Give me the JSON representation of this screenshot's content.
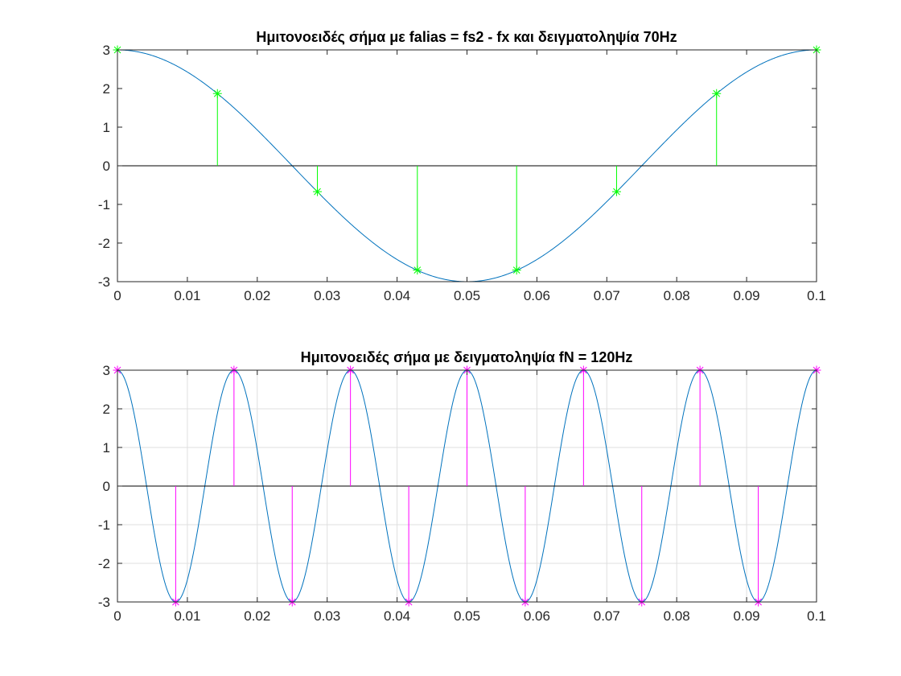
{
  "chart_data": [
    {
      "type": "line",
      "title": "Ημιτονοειδές σήμα με falias = fs2 - fx και δειγματοληψία 70Hz",
      "xlabel": "",
      "ylabel": "",
      "xlim": [
        0,
        0.1
      ],
      "ylim": [
        -3,
        3
      ],
      "grid": false,
      "signal": {
        "amplitude": 3,
        "frequency_hz": 10,
        "function": "cosine"
      },
      "x_ticks": [
        "0",
        "0.01",
        "0.02",
        "0.03",
        "0.04",
        "0.05",
        "0.06",
        "0.07",
        "0.08",
        "0.09",
        "0.1"
      ],
      "y_ticks": [
        "3",
        "2",
        "1",
        "0",
        "-1",
        "-2",
        "-3"
      ],
      "series": [
        {
          "type": "stem",
          "marker": "asterisk",
          "x": [
            0,
            0.0143,
            0.0286,
            0.0429,
            0.0571,
            0.0714,
            0.0857,
            0.1
          ],
          "y": [
            3,
            1.87,
            -0.67,
            -2.7,
            -2.7,
            -0.67,
            1.87,
            3
          ]
        }
      ],
      "colors": {
        "curve": "#0072BD",
        "stem": "#00FF00"
      }
    },
    {
      "type": "line",
      "title": "Ημιτονοειδές σήμα με δειγματοληψία fN = 120Hz",
      "xlabel": "",
      "ylabel": "",
      "xlim": [
        0,
        0.1
      ],
      "ylim": [
        -3,
        3
      ],
      "grid": true,
      "signal": {
        "amplitude": 3,
        "frequency_hz": 60,
        "function": "cosine"
      },
      "x_ticks": [
        "0",
        "0.01",
        "0.02",
        "0.03",
        "0.04",
        "0.05",
        "0.06",
        "0.07",
        "0.08",
        "0.09",
        "0.1"
      ],
      "y_ticks": [
        "3",
        "2",
        "1",
        "0",
        "-1",
        "-2",
        "-3"
      ],
      "series": [
        {
          "type": "stem",
          "marker": "asterisk",
          "x": [
            0,
            0.00833,
            0.01667,
            0.025,
            0.03333,
            0.04167,
            0.05,
            0.05833,
            0.06667,
            0.075,
            0.08333,
            0.09167,
            0.1
          ],
          "y": [
            3,
            -3,
            3,
            -3,
            3,
            -3,
            3,
            -3,
            3,
            -3,
            3,
            -3,
            3
          ]
        }
      ],
      "colors": {
        "curve": "#0072BD",
        "stem": "#FF00FF"
      }
    }
  ]
}
